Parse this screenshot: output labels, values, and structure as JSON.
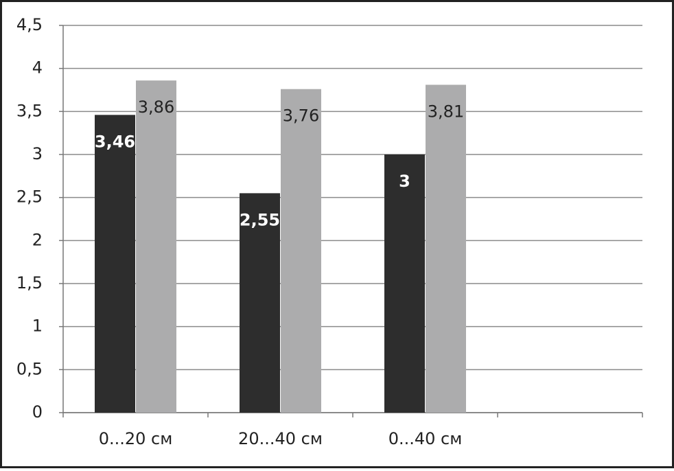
{
  "chart_data": {
    "type": "bar",
    "categories": [
      "0...20 см",
      "20...40 см",
      "0...40 см",
      null
    ],
    "series": [
      {
        "color": "#2d2d2d",
        "label_color": "#ffffff",
        "values": [
          3.46,
          2.55,
          3,
          null
        ],
        "value_labels": [
          "3,46",
          "2,55",
          "3",
          null
        ]
      },
      {
        "color": "#acacad",
        "label_color": "#222222",
        "values": [
          3.86,
          3.76,
          3.81,
          null
        ],
        "value_labels": [
          "3,86",
          "3,76",
          "3,81",
          null
        ]
      }
    ],
    "ylim": [
      0,
      4.5
    ],
    "yticks": [
      0,
      {
        "value": 0.5,
        "label": "0,5"
      },
      1,
      {
        "value": 1.5,
        "label": "1,5"
      },
      2,
      {
        "value": 2.5,
        "label": "2,5"
      },
      3,
      {
        "value": 3.5,
        "label": "3,5"
      },
      4,
      {
        "value": 4.5,
        "label": "4,5"
      }
    ],
    "grid": true
  }
}
